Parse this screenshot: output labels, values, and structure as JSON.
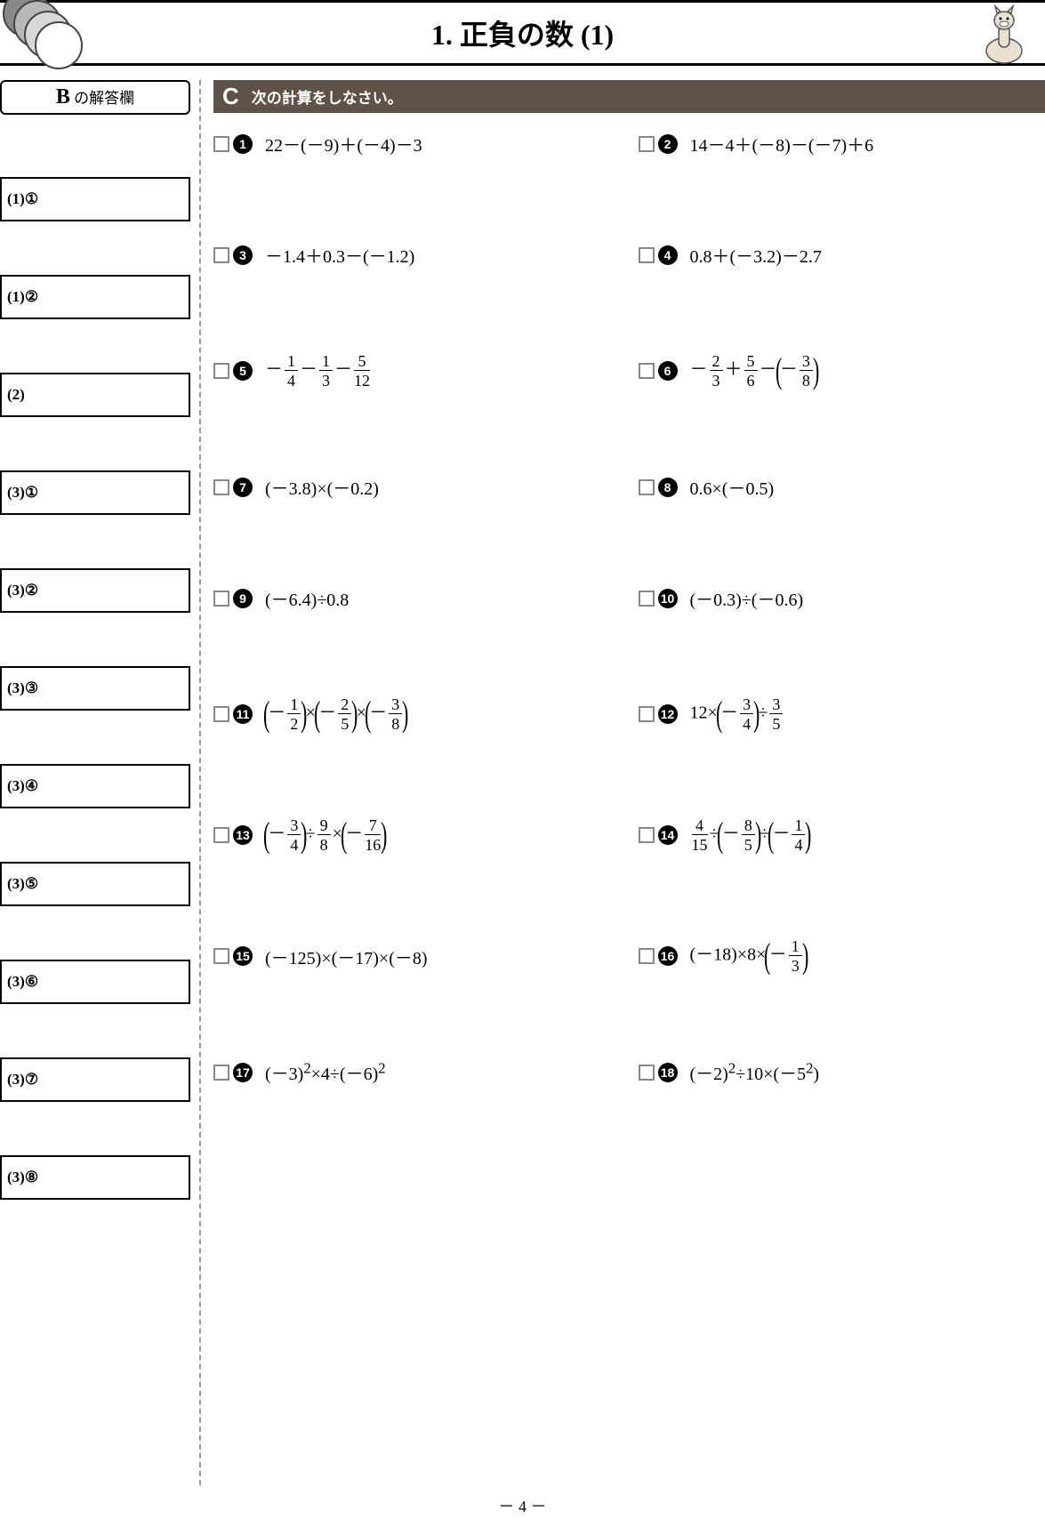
{
  "header": {
    "title": "1. 正負の数 (1)",
    "circle_colors": [
      "#888888",
      "#b8b8b8",
      "#d8d8d8",
      "#ffffff"
    ],
    "circle_stroke": "#444444",
    "alpaca_fill": "#e8e0d0",
    "alpaca_stroke": "#555555"
  },
  "b_section": {
    "letter": "B",
    "label": " の解答欄",
    "boxes": [
      "(1)①",
      "(1)②",
      "(2)",
      "(3)①",
      "(3)②",
      "(3)③",
      "(3)④",
      "(3)⑤",
      "(3)⑥",
      "(3)⑦",
      "(3)⑧"
    ]
  },
  "c_section": {
    "letter": "C",
    "instruction": "次の計算をしなさい。",
    "header_bg": "#5f5248",
    "problems": [
      {
        "n": "1",
        "html": "22－(－9)＋(－4)－3"
      },
      {
        "n": "2",
        "html": "14－4＋(－8)－(－7)＋6"
      },
      {
        "n": "3",
        "html": "－1.4＋0.3－(－1.2)"
      },
      {
        "n": "4",
        "html": "0.8＋(－3.2)－2.7"
      },
      {
        "n": "5",
        "html": "－<span class='frac'><span class='num'>1</span><span class='den'>4</span></span>－<span class='frac'><span class='num'>1</span><span class='den'>3</span></span>－<span class='frac'><span class='num'>5</span><span class='den'>12</span></span>"
      },
      {
        "n": "6",
        "html": "－<span class='frac'><span class='num'>2</span><span class='den'>3</span></span>＋<span class='frac'><span class='num'>5</span><span class='den'>6</span></span>－<span class='lparen'>(</span>－<span class='frac'><span class='num'>3</span><span class='den'>8</span></span><span class='rparen'>)</span>"
      },
      {
        "n": "7",
        "html": "(－3.8)×(－0.2)"
      },
      {
        "n": "8",
        "html": "0.6×(－0.5)"
      },
      {
        "n": "9",
        "html": "(－6.4)÷0.8"
      },
      {
        "n": "10",
        "html": "(－0.3)÷(－0.6)"
      },
      {
        "n": "11",
        "html": "<span class='lparen'>(</span>－<span class='frac'><span class='num'>1</span><span class='den'>2</span></span><span class='rparen'>)</span>×<span class='lparen'>(</span>－<span class='frac'><span class='num'>2</span><span class='den'>5</span></span><span class='rparen'>)</span>×<span class='lparen'>(</span>－<span class='frac'><span class='num'>3</span><span class='den'>8</span></span><span class='rparen'>)</span>"
      },
      {
        "n": "12",
        "html": "12×<span class='lparen'>(</span>－<span class='frac'><span class='num'>3</span><span class='den'>4</span></span><span class='rparen'>)</span>÷<span class='frac'><span class='num'>3</span><span class='den'>5</span></span>"
      },
      {
        "n": "13",
        "html": "<span class='lparen'>(</span>－<span class='frac'><span class='num'>3</span><span class='den'>4</span></span><span class='rparen'>)</span>÷<span class='frac'><span class='num'>9</span><span class='den'>8</span></span>×<span class='lparen'>(</span>－<span class='frac'><span class='num'>7</span><span class='den'>16</span></span><span class='rparen'>)</span>"
      },
      {
        "n": "14",
        "html": "<span class='frac'><span class='num'>4</span><span class='den'>15</span></span>÷<span class='lparen'>(</span>－<span class='frac'><span class='num'>8</span><span class='den'>5</span></span><span class='rparen'>)</span>÷<span class='lparen'>(</span>－<span class='frac'><span class='num'>1</span><span class='den'>4</span></span><span class='rparen'>)</span>"
      },
      {
        "n": "15",
        "html": "(－125)×(－17)×(－8)"
      },
      {
        "n": "16",
        "html": "(－18)×8×<span class='lparen'>(</span>－<span class='frac'><span class='num'>1</span><span class='den'>3</span></span><span class='rparen'>)</span>"
      },
      {
        "n": "17",
        "html": "(－3)<sup>2</sup>×4÷(－6)<sup>2</sup>"
      },
      {
        "n": "18",
        "html": "(－2)<sup>2</sup>÷10×(－5<sup>2</sup>)"
      }
    ]
  },
  "page_number": "－ 4 －"
}
